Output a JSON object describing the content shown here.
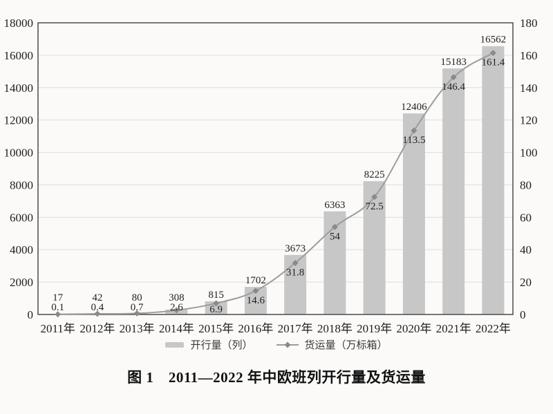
{
  "chart_data": {
    "type": "bar+line",
    "title": "图 1　2011—2022 年中欧班列开行量及货运量",
    "categories": [
      "2011年",
      "2012年",
      "2013年",
      "2014年",
      "2015年",
      "2016年",
      "2017年",
      "2018年",
      "2019年",
      "2020年",
      "2021年",
      "2022年"
    ],
    "series": [
      {
        "name": "开行量（列）",
        "type": "bar",
        "axis": "left",
        "values": [
          17,
          42,
          80,
          308,
          815,
          1702,
          3673,
          6363,
          8225,
          12406,
          15183,
          16562
        ]
      },
      {
        "name": "货运量（万标箱）",
        "type": "line",
        "axis": "right",
        "values": [
          0.1,
          0.4,
          0.7,
          2.6,
          6.9,
          14.6,
          31.8,
          54,
          72.5,
          113.5,
          146.4,
          161.4
        ]
      }
    ],
    "left_axis": {
      "min": 0,
      "max": 18000,
      "ticks": [
        0,
        2000,
        4000,
        6000,
        8000,
        10000,
        12000,
        14000,
        16000,
        18000
      ]
    },
    "right_axis": {
      "min": 0,
      "max": 180,
      "ticks": [
        0,
        20,
        40,
        60,
        80,
        100,
        120,
        140,
        160,
        180
      ]
    },
    "grid": true,
    "legend_position": "bottom",
    "data_labels": true
  },
  "colors": {
    "background": "#fbfaf8",
    "bar": "#c7c7c7",
    "line": "#9c9c9c",
    "marker": "#8a8a8a",
    "grid": "#dddddd",
    "axis": "#4b4b4b",
    "label_text": "#1f1f1f",
    "tick_text": "#1f1f1f",
    "legend_text": "#3a3a3a"
  }
}
